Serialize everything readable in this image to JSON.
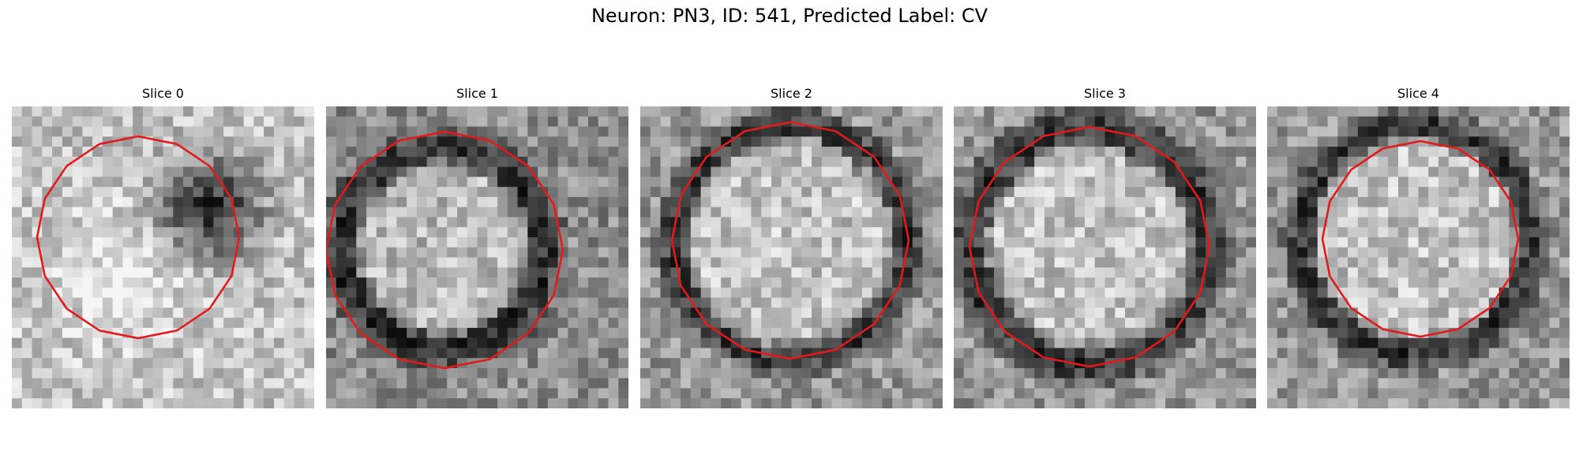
{
  "figure": {
    "title": "Neuron: PN3, ID: 541, Predicted Label: CV"
  },
  "panels": [
    {
      "title": "Slice 0",
      "pattern": "off-center-dark-blob"
    },
    {
      "title": "Slice 1",
      "pattern": "dark-ring-bright-center"
    },
    {
      "title": "Slice 2",
      "pattern": "dark-ring-bright-center"
    },
    {
      "title": "Slice 3",
      "pattern": "faint-ring-gray-center"
    },
    {
      "title": "Slice 4",
      "pattern": "dark-ring-bright-center"
    }
  ],
  "colors": {
    "contour": "#e31a1c",
    "background": "#ffffff"
  }
}
